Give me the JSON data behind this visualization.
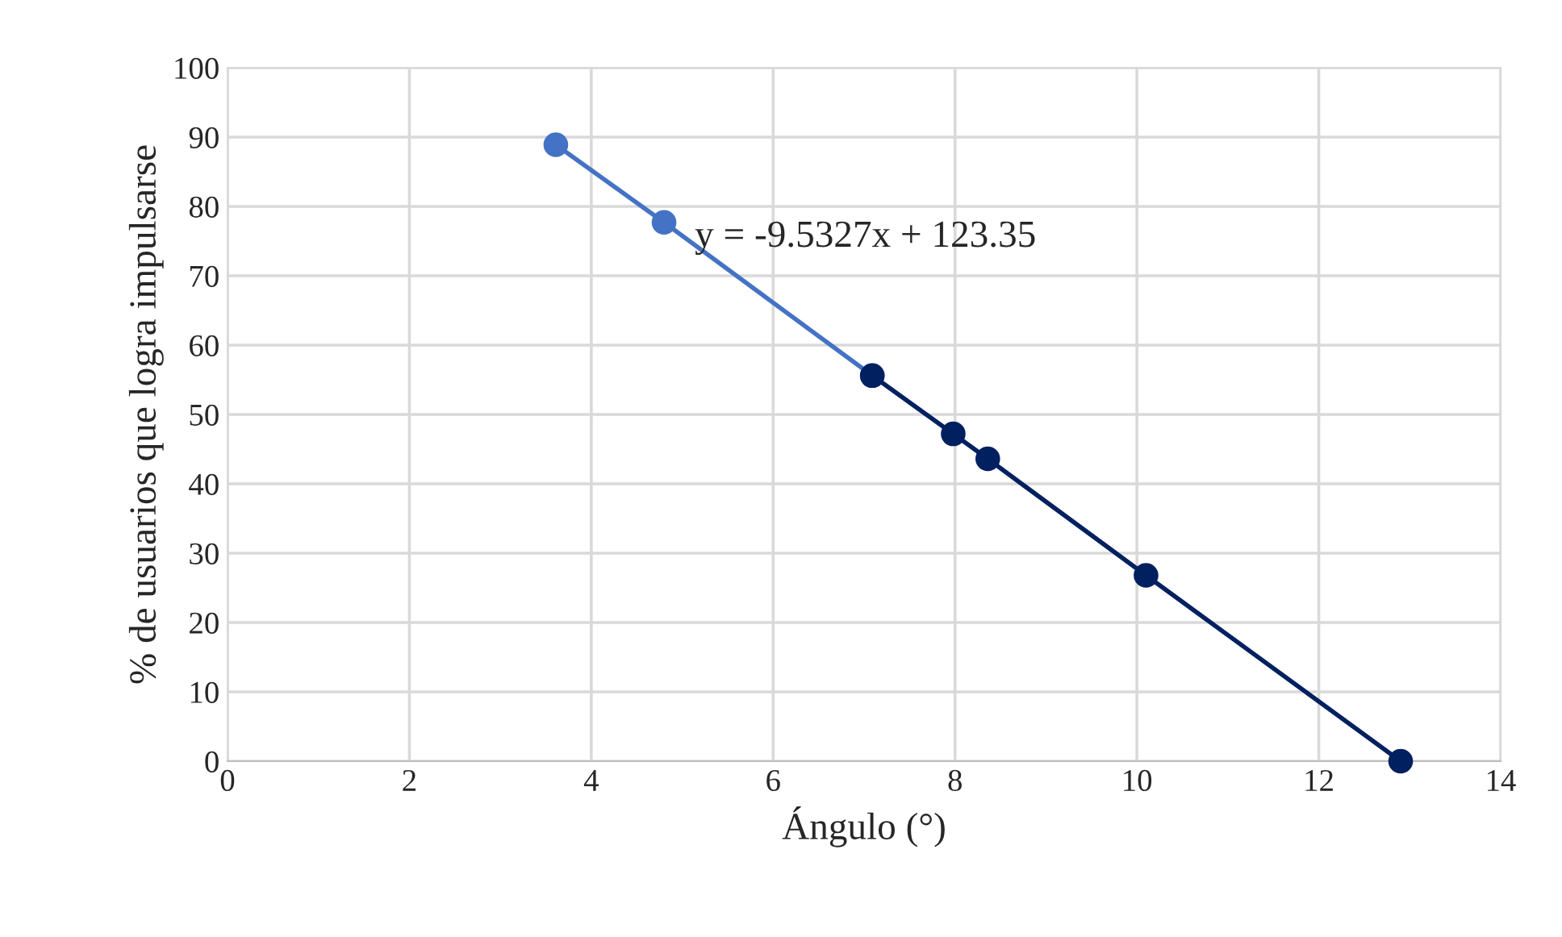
{
  "chart_data": {
    "type": "line",
    "xlabel": "Ángulo (°)",
    "ylabel": "% de usuarios que logra impulsarse",
    "series": [
      {
        "color": "#4472c4",
        "x": [
          3.61,
          4.8,
          7.09
        ],
        "values": [
          88.9,
          77.7,
          55.6
        ]
      },
      {
        "color": "#002060",
        "x": [
          7.09,
          7.98,
          8.36,
          10.1,
          12.9
        ],
        "values": [
          55.6,
          47.2,
          43.6,
          26.8,
          0
        ]
      }
    ],
    "annotations": [
      "y = -9.5327x + 123.35"
    ],
    "marker": "circle",
    "line_style": "solid",
    "xlim": [
      0,
      14
    ],
    "xticks": [
      0,
      2,
      4,
      6,
      8,
      10,
      12,
      14
    ],
    "ylim": [
      0,
      100
    ],
    "yticks": [
      0,
      10,
      20,
      30,
      40,
      50,
      60,
      70,
      80,
      90,
      100
    ],
    "grid": true,
    "legend": false
  }
}
